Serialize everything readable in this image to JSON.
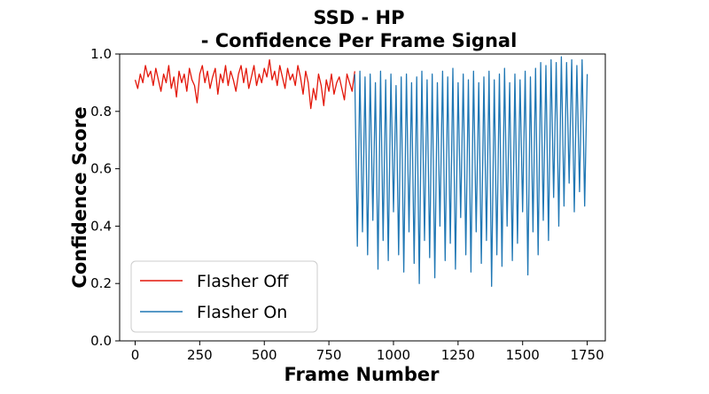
{
  "chart_data": {
    "type": "line",
    "title_line1": "SSD - HP",
    "title_line2": "- Confidence Per Frame Signal",
    "xlabel": "Frame Number",
    "ylabel": "Confidence Score",
    "xlim": [
      -60,
      1820
    ],
    "ylim": [
      0.0,
      1.0
    ],
    "xticks": [
      0,
      250,
      500,
      750,
      1000,
      1250,
      1500,
      1750
    ],
    "yticks": [
      0.0,
      0.2,
      0.4,
      0.6,
      0.8,
      1.0
    ],
    "xtick_labels": [
      "0",
      "250",
      "500",
      "750",
      "1000",
      "1250",
      "1500",
      "1750"
    ],
    "ytick_labels": [
      "0.0",
      "0.2",
      "0.4",
      "0.6",
      "0.8",
      "1.0"
    ],
    "grid": false,
    "legend_position": "lower-left",
    "series": [
      {
        "name": "Flasher Off",
        "color": "#e3170a",
        "x": [
          0,
          10,
          20,
          30,
          40,
          50,
          60,
          70,
          80,
          90,
          100,
          110,
          120,
          130,
          140,
          150,
          160,
          170,
          180,
          190,
          200,
          210,
          220,
          230,
          240,
          250,
          260,
          270,
          280,
          290,
          300,
          310,
          320,
          330,
          340,
          350,
          360,
          370,
          380,
          390,
          400,
          410,
          420,
          430,
          440,
          450,
          460,
          470,
          480,
          490,
          500,
          510,
          520,
          530,
          540,
          550,
          560,
          570,
          580,
          590,
          600,
          610,
          620,
          630,
          640,
          650,
          660,
          670,
          680,
          690,
          700,
          710,
          720,
          730,
          740,
          750,
          760,
          770,
          780,
          790,
          800,
          810,
          820,
          830,
          840,
          850
        ],
        "values": [
          0.91,
          0.88,
          0.93,
          0.9,
          0.96,
          0.92,
          0.94,
          0.89,
          0.95,
          0.91,
          0.87,
          0.93,
          0.9,
          0.96,
          0.88,
          0.92,
          0.85,
          0.94,
          0.9,
          0.93,
          0.87,
          0.95,
          0.91,
          0.89,
          0.83,
          0.93,
          0.96,
          0.9,
          0.94,
          0.88,
          0.92,
          0.95,
          0.86,
          0.93,
          0.9,
          0.96,
          0.89,
          0.94,
          0.91,
          0.87,
          0.93,
          0.96,
          0.9,
          0.95,
          0.88,
          0.92,
          0.96,
          0.89,
          0.93,
          0.9,
          0.95,
          0.92,
          0.98,
          0.91,
          0.94,
          0.89,
          0.96,
          0.92,
          0.88,
          0.95,
          0.91,
          0.93,
          0.89,
          0.96,
          0.92,
          0.86,
          0.94,
          0.9,
          0.81,
          0.88,
          0.84,
          0.93,
          0.89,
          0.82,
          0.91,
          0.87,
          0.93,
          0.86,
          0.9,
          0.92,
          0.88,
          0.84,
          0.93,
          0.9,
          0.87,
          0.94
        ]
      },
      {
        "name": "Flasher On",
        "color": "#1f77b4",
        "x": [
          850,
          860,
          870,
          880,
          890,
          900,
          910,
          920,
          930,
          940,
          950,
          960,
          970,
          980,
          990,
          1000,
          1010,
          1020,
          1030,
          1040,
          1050,
          1060,
          1070,
          1080,
          1090,
          1100,
          1110,
          1120,
          1130,
          1140,
          1150,
          1160,
          1170,
          1180,
          1190,
          1200,
          1210,
          1220,
          1230,
          1240,
          1250,
          1260,
          1270,
          1280,
          1290,
          1300,
          1310,
          1320,
          1330,
          1340,
          1350,
          1360,
          1370,
          1380,
          1390,
          1400,
          1410,
          1420,
          1430,
          1440,
          1450,
          1460,
          1470,
          1480,
          1490,
          1500,
          1510,
          1520,
          1530,
          1540,
          1550,
          1560,
          1570,
          1580,
          1590,
          1600,
          1610,
          1620,
          1630,
          1640,
          1650,
          1660,
          1670,
          1680,
          1690,
          1700,
          1710,
          1720,
          1730,
          1740,
          1750
        ],
        "values": [
          0.93,
          0.33,
          0.94,
          0.38,
          0.92,
          0.3,
          0.93,
          0.42,
          0.9,
          0.25,
          0.94,
          0.35,
          0.91,
          0.28,
          0.93,
          0.45,
          0.89,
          0.3,
          0.92,
          0.24,
          0.93,
          0.38,
          0.9,
          0.27,
          0.92,
          0.2,
          0.94,
          0.35,
          0.91,
          0.29,
          0.93,
          0.22,
          0.9,
          0.4,
          0.94,
          0.28,
          0.92,
          0.34,
          0.95,
          0.25,
          0.9,
          0.43,
          0.93,
          0.3,
          0.91,
          0.24,
          0.94,
          0.38,
          0.9,
          0.27,
          0.92,
          0.35,
          0.94,
          0.19,
          0.91,
          0.3,
          0.93,
          0.26,
          0.95,
          0.4,
          0.9,
          0.28,
          0.93,
          0.34,
          0.91,
          0.45,
          0.94,
          0.23,
          0.92,
          0.38,
          0.95,
          0.3,
          0.97,
          0.42,
          0.96,
          0.35,
          0.98,
          0.5,
          0.97,
          0.4,
          0.99,
          0.47,
          0.97,
          0.55,
          0.98,
          0.45,
          0.96,
          0.52,
          0.98,
          0.47,
          0.93
        ]
      }
    ]
  }
}
